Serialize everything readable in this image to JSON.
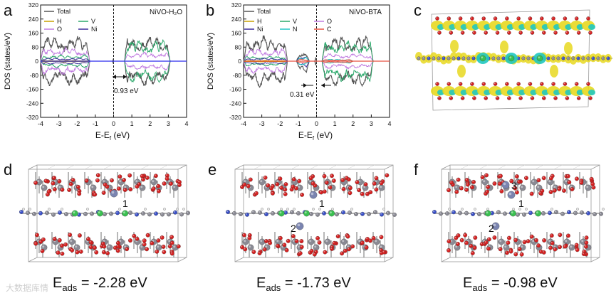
{
  "panels": {
    "a": {
      "label": "a",
      "sample": "NiVO-H₂O",
      "gap_label": "0.93 eV",
      "legend": [
        "Total",
        "H",
        "V",
        "O",
        "Ni"
      ],
      "colors": {
        "Total": "#555555",
        "H": "#c8a000",
        "V": "#2aa86a",
        "O": "#c07ae0",
        "Ni": "#3a2a9a"
      }
    },
    "b": {
      "label": "b",
      "sample": "NiVO-BTA",
      "gap_label": "0.31 eV",
      "legend": [
        "Total",
        "H",
        "V",
        "O",
        "Ni",
        "N",
        "C"
      ],
      "colors": {
        "Total": "#555555",
        "H": "#c8a000",
        "V": "#2aa86a",
        "O": "#c07ae0",
        "Ni": "#3a2a9a",
        "N": "#22c6c6",
        "C": "#e85040"
      }
    },
    "c": {
      "label": "c"
    },
    "d": {
      "label": "d",
      "site_labels": [
        "1"
      ],
      "energy_prefix": "E",
      "energy_sub": "ads",
      "energy_value": " = -2.28 eV"
    },
    "e": {
      "label": "e",
      "site_labels": [
        "1",
        "2"
      ],
      "energy_prefix": "E",
      "energy_sub": "ads",
      "energy_value": " = -1.73 eV"
    },
    "f": {
      "label": "f",
      "site_labels": [
        "1",
        "2",
        "3"
      ],
      "energy_prefix": "E",
      "energy_sub": "ads",
      "energy_value": " = -0.98 eV"
    }
  },
  "chart_data": [
    {
      "type": "line",
      "title": "NiVO-H₂O",
      "xlabel": "E-Ef (eV)",
      "ylabel": "DOS (states/eV)",
      "xlim": [
        -4,
        4
      ],
      "ylim": [
        -320,
        320
      ],
      "xticks": [
        "-4",
        "-3",
        "-2",
        "-1",
        "0",
        "1",
        "2",
        "3",
        "4"
      ],
      "yticks": [
        "320",
        "240",
        "160",
        "80",
        "0",
        "-80",
        "-160",
        "-240",
        "-320"
      ],
      "band_gap_eV": 0.93
    },
    {
      "type": "line",
      "title": "NiVO-BTA",
      "xlabel": "E-Ef (eV)",
      "ylabel": "DOS (states/eV)",
      "xlim": [
        -4,
        4
      ],
      "ylim": [
        -320,
        320
      ],
      "xticks": [
        "-4",
        "-3",
        "-2",
        "-1",
        "0",
        "1",
        "2",
        "3",
        "4"
      ],
      "yticks": [
        "320",
        "240",
        "160",
        "80",
        "0",
        "-80",
        "-160",
        "-240",
        "-320"
      ],
      "band_gap_eV": 0.31
    }
  ],
  "axis": {
    "ylabel": "DOS (states/eV)",
    "xlabel_main": "E-E",
    "xlabel_sub": "f",
    "xlabel_unit": " (eV)"
  },
  "watermark": "大数据库情"
}
